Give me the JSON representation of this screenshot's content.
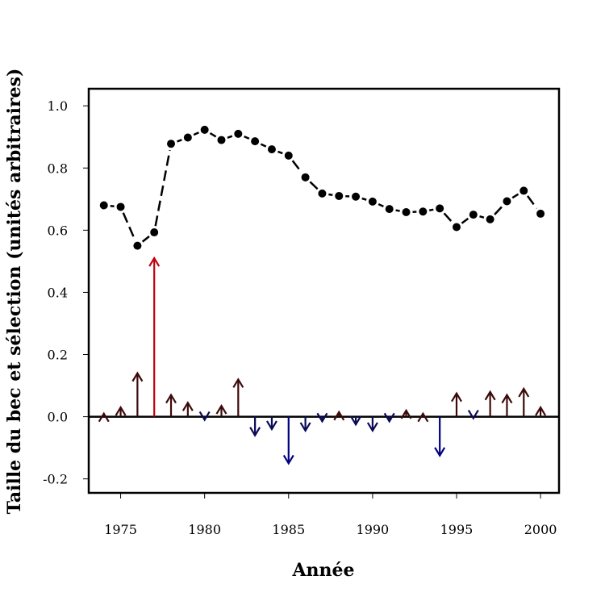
{
  "chart_data": {
    "type": "scatter",
    "title": "",
    "xlabel": "Année",
    "ylabel": "Taille du bec et sélection (unités arbitraires)",
    "xlim": [
      1973.1,
      2001.1
    ],
    "ylim": [
      -0.245,
      1.055
    ],
    "x_ticks": [
      1975,
      1980,
      1985,
      1990,
      1995,
      2000
    ],
    "x_tick_labels": [
      "1975",
      "1980",
      "1985",
      "1990",
      "1995",
      "2000"
    ],
    "y_ticks": [
      -0.2,
      0.0,
      0.2,
      0.4,
      0.6,
      0.8,
      1.0
    ],
    "y_tick_labels": [
      "-0.2",
      "0.0",
      "0.2",
      "0.4",
      "0.6",
      "0.8",
      "1.0"
    ],
    "grid": false,
    "reference_line_y": 0,
    "years": [
      1974,
      1975,
      1976,
      1977,
      1978,
      1979,
      1980,
      1981,
      1982,
      1983,
      1984,
      1985,
      1986,
      1987,
      1988,
      1989,
      1990,
      1991,
      1992,
      1993,
      1994,
      1995,
      1996,
      1997,
      1998,
      1999,
      2000
    ],
    "series": [
      {
        "kind": "points-with-dashed-line",
        "color": "#000000",
        "values": [
          0.68,
          0.675,
          0.55,
          0.593,
          0.878,
          0.898,
          0.923,
          0.89,
          0.91,
          0.886,
          0.86,
          0.84,
          0.77,
          0.718,
          0.71,
          0.708,
          0.692,
          0.668,
          0.658,
          0.66,
          0.67,
          0.61,
          0.65,
          0.635,
          0.693,
          0.727,
          0.653
        ]
      },
      {
        "kind": "arrows-from-zero",
        "colors": {
          "positive": "#3c0a0a",
          "negative": "#0a0a55",
          "strong_positive": "#bf0010",
          "strong_negative": "#000080"
        },
        "values": [
          0.01,
          0.03,
          0.14,
          0.51,
          0.07,
          0.045,
          -0.01,
          0.035,
          0.12,
          -0.06,
          -0.04,
          -0.15,
          -0.045,
          -0.015,
          0.015,
          -0.025,
          -0.045,
          -0.015,
          0.02,
          0.01,
          -0.125,
          0.075,
          -0.005,
          0.08,
          0.07,
          0.09,
          0.03
        ]
      }
    ]
  }
}
